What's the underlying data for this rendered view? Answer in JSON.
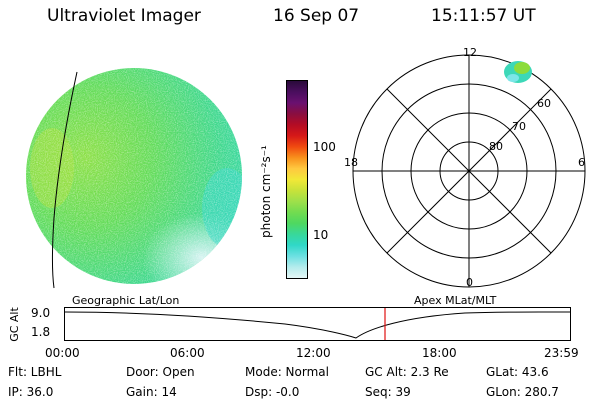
{
  "header": {
    "instrument": "Ultraviolet Imager",
    "date": "16 Sep 07",
    "time": "15:11:57 UT"
  },
  "colorbar": {
    "label": "photon cm⁻²s⁻¹",
    "ticks": [
      "100",
      "10"
    ],
    "colors": [
      "#2a0a3a",
      "#4a0e5e",
      "#6a1070",
      "#8a0e40",
      "#b40c24",
      "#d61818",
      "#f04a10",
      "#f8901c",
      "#ffc840",
      "#f2e838",
      "#c8e23a",
      "#9ee04a",
      "#72dc50",
      "#4ed860",
      "#38d89a",
      "#30d8c8",
      "#6ce0e2",
      "#b4ecec",
      "#e4f6f6"
    ]
  },
  "left_map": {
    "caption": "Geographic Lat/Lon",
    "colors": {
      "base": "#58e070",
      "edge_green": "#7be04c",
      "cyan": "#30d8c8",
      "light": "#c8f2f0"
    }
  },
  "right_map": {
    "caption": "Apex MLat/MLT",
    "mlt_labels": [
      "12",
      "18",
      "6",
      "0"
    ],
    "lat_labels": [
      "60",
      "70",
      "80"
    ]
  },
  "altitude_panel": {
    "axis_label": "GC Alt",
    "y_ticks": [
      "9.0",
      "1.8"
    ],
    "x_ticks": [
      "00:00",
      "06:00",
      "12:00",
      "18:00",
      "23:59"
    ],
    "marker_color": "#e01010"
  },
  "footer": {
    "row1": {
      "flt": "Flt: LBHL",
      "door": "Door: Open",
      "mode": "Mode: Normal",
      "gc_alt": "GC Alt: 2.3 Re",
      "glat": "GLat:  43.6"
    },
    "row2": {
      "ip": "IP: 36.0",
      "gain": "Gain: 14",
      "dsp": "Dsp:   -0.0",
      "seq": "Seq: 39",
      "glon": "GLon: 280.7"
    }
  }
}
